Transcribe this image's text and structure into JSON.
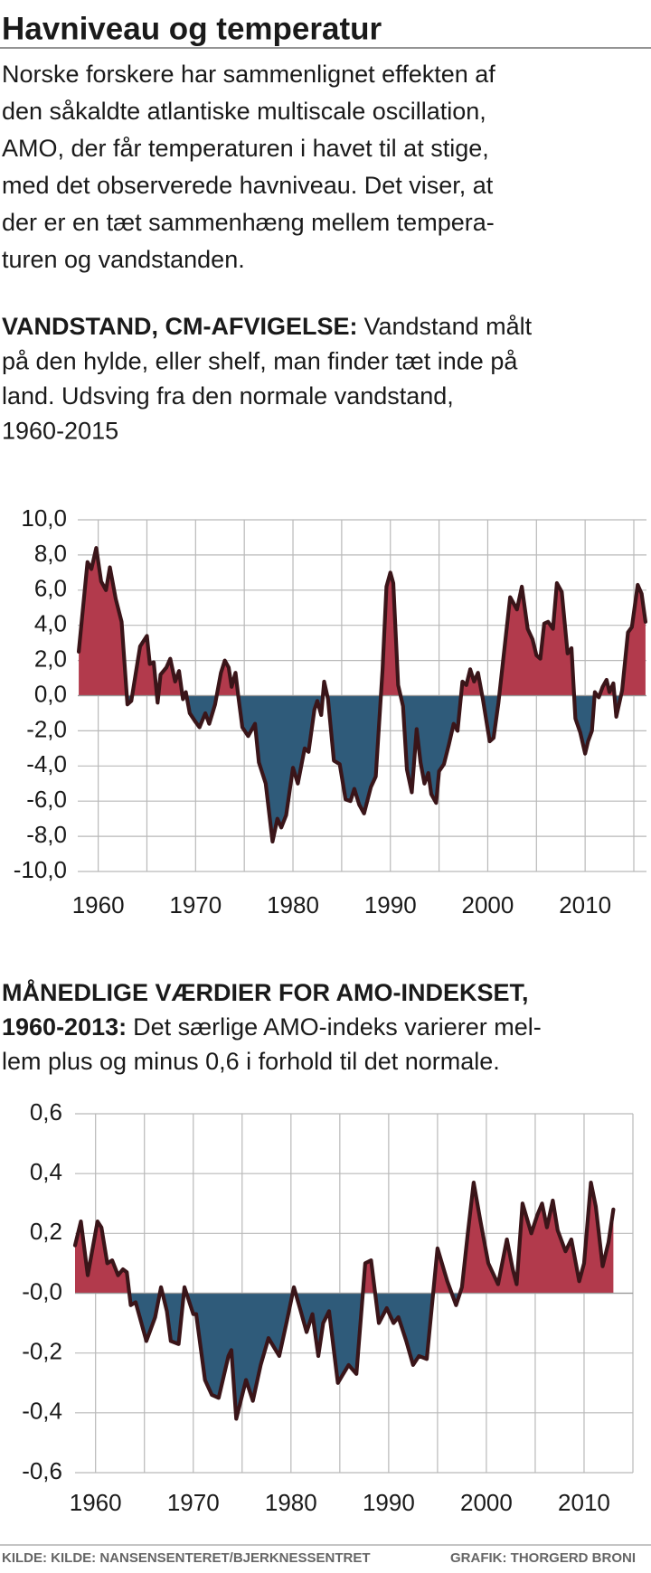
{
  "header": {
    "title": "Havniveau og temperatur"
  },
  "intro": [
    "Norske forskere har sammenlignet effekten af",
    "den såkaldte atlantiske multiscale oscillation,",
    "AMO, der får temperaturen i havet til at stige,",
    "med det observerede havniveau. Det viser, at",
    "der er en tæt sammenhæng mellem tempera-",
    "turen og vandstanden."
  ],
  "footer": {
    "source": "KILDE: KILDE: NANSENSENTERET/BJERKNESSENTRET",
    "credit": "GRAFIK: THORGERD BRONI"
  },
  "chart_data": [
    {
      "type": "area",
      "title": [
        "VANDSTAND, CM-AFVIGELSE:"
      ],
      "subtitle": [
        "Vandstand målt",
        "på den hylde, eller shelf, man finder tæt inde på",
        "land. Udsving fra den normale vandstand,",
        "1960-2015"
      ],
      "x": [
        1958.0,
        1958.9,
        1959.3,
        1959.8,
        1960.3,
        1960.8,
        1961.2,
        1961.8,
        1962.4,
        1963.0,
        1963.4,
        1964.3,
        1965.0,
        1965.3,
        1965.7,
        1966.1,
        1966.4,
        1967.0,
        1967.4,
        1967.9,
        1968.3,
        1968.7,
        1969.0,
        1969.4,
        1970.0,
        1970.4,
        1971.0,
        1971.4,
        1972.0,
        1972.6,
        1973.0,
        1973.4,
        1973.7,
        1974.1,
        1974.4,
        1974.8,
        1975.4,
        1976.1,
        1976.5,
        1977.2,
        1977.9,
        1978.4,
        1978.8,
        1979.3,
        1980.0,
        1980.5,
        1981.2,
        1981.6,
        1982.2,
        1982.5,
        1982.9,
        1983.2,
        1983.6,
        1984.2,
        1984.8,
        1985.4,
        1985.9,
        1986.3,
        1986.8,
        1987.3,
        1988.0,
        1988.5,
        1989.2,
        1989.6,
        1990.0,
        1990.3,
        1990.8,
        1991.3,
        1991.7,
        1992.2,
        1992.7,
        1993.1,
        1993.5,
        1993.9,
        1994.2,
        1994.7,
        1995.0,
        1995.5,
        1996.0,
        1996.5,
        1996.9,
        1997.4,
        1997.8,
        1998.2,
        1998.6,
        1999.0,
        1999.5,
        2000.2,
        2000.6,
        2001.1,
        2001.6,
        2002.3,
        2003.0,
        2003.5,
        2004.1,
        2004.6,
        2005.0,
        2005.4,
        2005.8,
        2006.2,
        2006.7,
        2007.1,
        2007.6,
        2008.2,
        2008.6,
        2009.0,
        2009.5,
        2010.0,
        2010.3,
        2010.7,
        2011.0,
        2011.4,
        2011.8,
        2012.2,
        2012.5,
        2012.9,
        2013.2,
        2013.8,
        2014.4,
        2014.8,
        2015.4,
        2015.8,
        2016.2
      ],
      "values": [
        2.5,
        7.6,
        7.2,
        8.4,
        6.5,
        6.0,
        7.3,
        5.5,
        4.2,
        -0.5,
        -0.3,
        2.8,
        3.4,
        1.8,
        1.9,
        -0.4,
        1.2,
        1.6,
        2.1,
        0.8,
        1.4,
        -0.2,
        0.2,
        -1.0,
        -1.5,
        -1.8,
        -1.0,
        -1.6,
        -0.5,
        1.3,
        2.0,
        1.6,
        0.5,
        1.3,
        -0.1,
        -1.8,
        -2.3,
        -1.6,
        -3.8,
        -5.0,
        -8.3,
        -7.0,
        -7.5,
        -6.8,
        -4.1,
        -5.0,
        -3.0,
        -3.2,
        -0.8,
        -0.3,
        -1.1,
        0.8,
        -0.2,
        -3.7,
        -3.9,
        -5.9,
        -6.0,
        -5.3,
        -6.2,
        -6.7,
        -5.2,
        -4.6,
        1.5,
        6.2,
        7.0,
        6.4,
        0.6,
        -0.6,
        -4.2,
        -5.5,
        -1.9,
        -3.8,
        -5.0,
        -4.4,
        -5.6,
        -6.1,
        -4.3,
        -3.9,
        -2.8,
        -1.6,
        -2.0,
        0.8,
        0.6,
        1.5,
        0.8,
        1.3,
        -0.2,
        -2.6,
        -2.4,
        -0.4,
        2.1,
        5.6,
        4.9,
        6.2,
        3.8,
        3.2,
        2.3,
        2.1,
        4.1,
        4.2,
        3.8,
        6.4,
        5.9,
        2.4,
        2.7,
        -1.3,
        -2.1,
        -3.3,
        -2.6,
        -2.0,
        0.2,
        -0.1,
        0.5,
        0.9,
        0.2,
        0.7,
        -1.2,
        0.3,
        3.6,
        3.9,
        6.3,
        5.8,
        4.2
      ],
      "xlim": [
        1957.9,
        2016.3
      ],
      "xticks": [
        1960,
        1970,
        1980,
        1990,
        2000,
        2010
      ],
      "xminor": [
        1965,
        1975,
        1985,
        1995,
        2005,
        2015
      ],
      "ylim": [
        -10,
        10
      ],
      "yticks": [
        {
          "value": 10,
          "label": "10,0"
        },
        {
          "value": 8,
          "label": "8,0"
        },
        {
          "value": 6,
          "label": "6,0"
        },
        {
          "value": 4,
          "label": "4,0"
        },
        {
          "value": 2,
          "label": "2,0"
        },
        {
          "value": 0,
          "label": "0,0"
        },
        {
          "value": -2,
          "label": "-2,0"
        },
        {
          "value": -4,
          "label": "-4,0"
        },
        {
          "value": -6,
          "label": "-6,0"
        },
        {
          "value": -8,
          "label": "-8,0"
        },
        {
          "value": -10,
          "label": "-10,0"
        }
      ],
      "grid": true,
      "line_color": "#3a1519",
      "positive_color": "#b23a4c",
      "negative_color": "#2f5b7a"
    },
    {
      "type": "area",
      "title": [
        "MÅNEDLIGE VÆRDIER FOR AMO-INDEKSET,",
        "1960-2013:"
      ],
      "subtitle": [
        "Det særlige AMO-indeks varierer mel-",
        "lem plus og minus 0,6 i forhold til det normale."
      ],
      "x": [
        1957.9,
        1958.5,
        1959.2,
        1960.2,
        1960.6,
        1961.2,
        1961.7,
        1962.3,
        1962.8,
        1963.2,
        1963.6,
        1964.1,
        1965.2,
        1966.1,
        1966.7,
        1967.3,
        1967.7,
        1968.5,
        1969.1,
        1970.0,
        1970.3,
        1971.2,
        1971.9,
        1972.6,
        1973.6,
        1973.9,
        1974.4,
        1975.4,
        1976.1,
        1976.9,
        1977.7,
        1978.8,
        1979.6,
        1980.3,
        1981.0,
        1981.6,
        1982.2,
        1982.8,
        1983.3,
        1983.9,
        1984.8,
        1985.9,
        1986.7,
        1987.6,
        1988.2,
        1989.0,
        1989.8,
        1990.5,
        1991.0,
        1991.8,
        1992.5,
        1993.1,
        1993.9,
        1995.0,
        1996.0,
        1996.9,
        1997.5,
        1998.1,
        1998.7,
        1999.4,
        2000.2,
        2001.2,
        2002.1,
        2002.7,
        2003.1,
        2003.7,
        2004.6,
        2005.2,
        2005.7,
        2006.2,
        2006.8,
        2007.3,
        2008.1,
        2008.7,
        2009.5,
        2010.0,
        2010.7,
        2011.2,
        2011.9,
        2012.5,
        2013.0
      ],
      "values": [
        0.16,
        0.24,
        0.06,
        0.24,
        0.22,
        0.1,
        0.11,
        0.06,
        0.08,
        0.07,
        -0.04,
        -0.03,
        -0.16,
        -0.08,
        0.02,
        -0.06,
        -0.16,
        -0.17,
        0.02,
        -0.07,
        -0.07,
        -0.29,
        -0.34,
        -0.35,
        -0.21,
        -0.19,
        -0.42,
        -0.29,
        -0.36,
        -0.24,
        -0.15,
        -0.21,
        -0.09,
        0.02,
        -0.06,
        -0.13,
        -0.07,
        -0.21,
        -0.1,
        -0.06,
        -0.3,
        -0.24,
        -0.27,
        0.1,
        0.11,
        -0.1,
        -0.05,
        -0.1,
        -0.08,
        -0.16,
        -0.24,
        -0.21,
        -0.22,
        0.15,
        0.04,
        -0.04,
        0.02,
        0.2,
        0.37,
        0.24,
        0.1,
        0.03,
        0.18,
        0.08,
        0.03,
        0.3,
        0.2,
        0.26,
        0.3,
        0.22,
        0.31,
        0.21,
        0.14,
        0.18,
        0.04,
        0.1,
        0.37,
        0.29,
        0.09,
        0.17,
        0.28
      ],
      "xlim": [
        1957.9,
        2015
      ],
      "xticks": [
        1960,
        1970,
        1980,
        1990,
        2000,
        2010
      ],
      "xminor": [
        1965,
        1975,
        1985,
        1995,
        2005,
        2015
      ],
      "ylim": [
        -0.6,
        0.6
      ],
      "yticks": [
        {
          "value": 0.6,
          "label": "0,6"
        },
        {
          "value": 0.4,
          "label": "0,4"
        },
        {
          "value": 0.2,
          "label": "0,2"
        },
        {
          "value": 0,
          "label": "-0,0"
        },
        {
          "value": -0.2,
          "label": "-0,2"
        },
        {
          "value": -0.4,
          "label": "-0,4"
        },
        {
          "value": -0.6,
          "label": "-0,6"
        }
      ],
      "grid": true,
      "line_color": "#3a1519",
      "positive_color": "#b23a4c",
      "negative_color": "#2f5b7a"
    }
  ]
}
